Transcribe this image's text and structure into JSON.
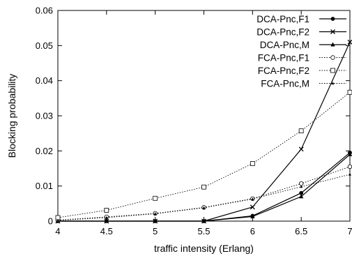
{
  "chart_data": {
    "type": "line",
    "xlabel": "traffic intensity (Erlang)",
    "ylabel": "Blocking probability",
    "xlim": [
      4,
      7
    ],
    "ylim": [
      0,
      0.06
    ],
    "xticks": [
      "4",
      "4.5",
      "5",
      "5.5",
      "6",
      "6.5",
      "7"
    ],
    "yticks": [
      "0",
      "0.01",
      "0.02",
      "0.03",
      "0.04",
      "0.05",
      "0.06"
    ],
    "grid": false,
    "legend_position": "top-right",
    "series": [
      {
        "name": "DCA-Pnc,F1",
        "marker": "filled-circle",
        "line": "solid",
        "x": [
          4,
          4.5,
          5,
          5.5,
          6,
          6.5,
          7
        ],
        "y": [
          0.0,
          0.0,
          0.0,
          0.0,
          0.0015,
          0.008,
          0.0195
        ]
      },
      {
        "name": "DCA-Pnc,F2",
        "marker": "x",
        "line": "solid",
        "x": [
          4,
          4.5,
          5,
          5.5,
          6,
          6.5,
          7
        ],
        "y": [
          0.0,
          0.0,
          0.0,
          0.0,
          0.004,
          0.0205,
          0.051
        ]
      },
      {
        "name": "DCA-Pnc,M",
        "marker": "triangle",
        "line": "solid",
        "x": [
          4,
          4.5,
          5,
          5.5,
          6,
          6.5,
          7
        ],
        "y": [
          0.0,
          0.0,
          0.0,
          0.0,
          0.0013,
          0.007,
          0.019
        ]
      },
      {
        "name": "FCA-Pnc,F1",
        "marker": "open-circle",
        "line": "dotted",
        "x": [
          4,
          4.5,
          5,
          5.5,
          6,
          6.5,
          7
        ],
        "y": [
          0.0003,
          0.0012,
          0.0022,
          0.0039,
          0.0064,
          0.0107,
          0.0155
        ]
      },
      {
        "name": "FCA-Pnc,F2",
        "marker": "open-square",
        "line": "dotted",
        "x": [
          4,
          4.5,
          5,
          5.5,
          6,
          6.5,
          7
        ],
        "y": [
          0.001,
          0.0031,
          0.0065,
          0.0097,
          0.0164,
          0.0257,
          0.0367
        ]
      },
      {
        "name": "FCA-Pnc,M",
        "marker": "small-triangle",
        "line": "dotted",
        "x": [
          4,
          4.5,
          5,
          5.5,
          6,
          6.5,
          7
        ],
        "y": [
          0.0002,
          0.001,
          0.0021,
          0.0038,
          0.0063,
          0.0098,
          0.0133
        ]
      }
    ]
  }
}
